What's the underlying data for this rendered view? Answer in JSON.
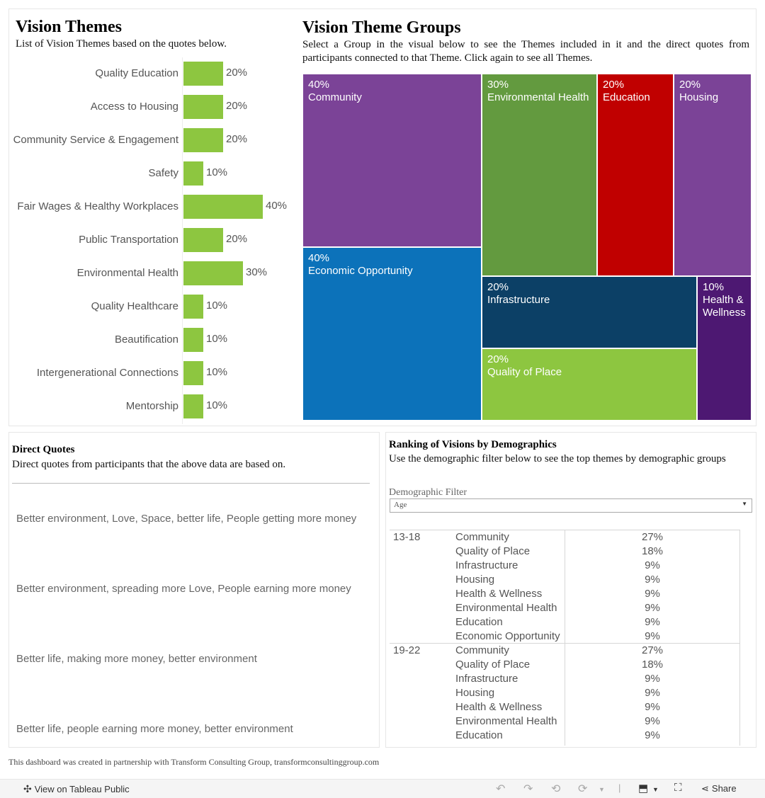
{
  "vision_themes": {
    "title": "Vision  Themes",
    "subtitle": "List of Vision Themes based on the quotes below."
  },
  "groups": {
    "title": "Vision  Theme  Groups",
    "subtitle": "Select a Group in the visual below to see the Themes included in it and the direct quotes from participants connected to that Theme. Click again to see all Themes."
  },
  "chart_data": [
    {
      "type": "bar",
      "orientation": "horizontal",
      "title": "Vision Themes",
      "categories": [
        "Quality Education",
        "Access to Housing",
        "Community Service & Engagement",
        "Safety",
        "Fair Wages & Healthy Workplaces",
        "Public Transportation",
        "Environmental Health",
        "Quality Healthcare",
        "Beautification",
        "Intergenerational Connections",
        "Mentorship"
      ],
      "values": [
        20,
        20,
        20,
        10,
        40,
        20,
        30,
        10,
        10,
        10,
        10
      ],
      "value_labels": [
        "20%",
        "20%",
        "20%",
        "10%",
        "40%",
        "20%",
        "30%",
        "10%",
        "10%",
        "10%",
        "10%"
      ],
      "unit": "%",
      "xlim": [
        0,
        40
      ],
      "color": "#8dc640"
    },
    {
      "type": "treemap",
      "title": "Vision Theme Groups",
      "items": [
        {
          "pct": "40%",
          "name": "Community",
          "color": "#7b4397"
        },
        {
          "pct": "30%",
          "name": "Environmental Health",
          "color": "#639a3f"
        },
        {
          "pct": "20%",
          "name": "Education",
          "color": "#c00000"
        },
        {
          "pct": "20%",
          "name": "Housing",
          "color": "#7b4397"
        },
        {
          "pct": "40%",
          "name": "Economic Opportunity",
          "color": "#0c72ba"
        },
        {
          "pct": "20%",
          "name": "Infrastructure",
          "color": "#0c4066"
        },
        {
          "pct": "10%",
          "name": "Health & Wellness",
          "color": "#4d1872"
        },
        {
          "pct": "20%",
          "name": "Quality of Place",
          "color": "#8dc640"
        }
      ]
    },
    {
      "type": "table",
      "title": "Ranking of Visions by Demographics",
      "groups": [
        {
          "group": "13-18",
          "rows": [
            {
              "theme": "Community",
              "value": "27%"
            },
            {
              "theme": "Quality of Place",
              "value": "18%"
            },
            {
              "theme": "Infrastructure",
              "value": "9%"
            },
            {
              "theme": "Housing",
              "value": "9%"
            },
            {
              "theme": "Health & Wellness",
              "value": "9%"
            },
            {
              "theme": "Environmental Health",
              "value": "9%"
            },
            {
              "theme": "Education",
              "value": "9%"
            },
            {
              "theme": "Economic Opportunity",
              "value": "9%"
            }
          ]
        },
        {
          "group": "19-22",
          "rows": [
            {
              "theme": "Community",
              "value": "27%"
            },
            {
              "theme": "Quality of Place",
              "value": "18%"
            },
            {
              "theme": "Infrastructure",
              "value": "9%"
            },
            {
              "theme": "Housing",
              "value": "9%"
            },
            {
              "theme": "Health & Wellness",
              "value": "9%"
            },
            {
              "theme": "Environmental Health",
              "value": "9%"
            },
            {
              "theme": "Education",
              "value": "9%"
            }
          ]
        }
      ]
    }
  ],
  "quotes": {
    "title": "Direct  Quotes",
    "subtitle": "Direct quotes from participants that the above data are based on.",
    "items": [
      "Better environment, Love, Space, better life, People getting more money",
      "Better environment, spreading more Love, People earning more money",
      "Better life, making more money, better environment",
      "Better life, people earning more money, better environment"
    ]
  },
  "ranking": {
    "title": "Ranking  of  Visions  by  Demographics",
    "subtitle": "Use the demographic filter below to see the top themes by demographic groups",
    "filter_label": "Demographic Filter",
    "filter_value": "Age"
  },
  "footer": {
    "note": "This dashboard was created in partnership with Transform Consulting Group, transformconsultinggroup.com"
  },
  "toolbar": {
    "view_label": "View on Tableau Public",
    "share_label": "Share"
  }
}
